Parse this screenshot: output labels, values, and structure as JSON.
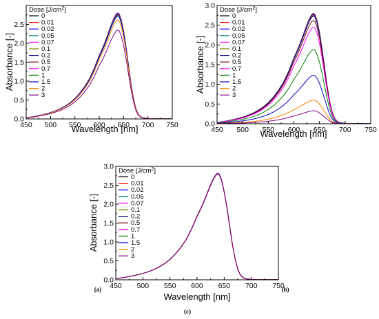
{
  "chart_data": [
    {
      "type": "line",
      "panel": "(a)",
      "xlabel": "Wavelength [nm]",
      "ylabel": "Absorbance [-]",
      "xlim": [
        450,
        750
      ],
      "ylim": [
        0,
        3.0
      ],
      "x_ticks": [
        "450",
        "500",
        "550",
        "600",
        "650",
        "700",
        "750"
      ],
      "y_ticks": [
        "0.0",
        "0.5",
        "1.0",
        "1.5",
        "2.0",
        "2.5"
      ],
      "grid": false,
      "legend_position": "top-left",
      "legend_title": "Dose [J/cm",
      "legend_title_sup": "2",
      "legend_title_end": "]",
      "peak_wavelength": 638,
      "series": [
        {
          "name": "0",
          "color": "#000000",
          "peak": 2.8
        },
        {
          "name": "0.01",
          "color": "#ff0000",
          "peak": 2.8
        },
        {
          "name": "0.02",
          "color": "#0000ff",
          "peak": 2.8
        },
        {
          "name": "0.05",
          "color": "#008080",
          "peak": 2.79
        },
        {
          "name": "0.07",
          "color": "#ff00ff",
          "peak": 2.79
        },
        {
          "name": "0.1",
          "color": "#808000",
          "peak": 2.78
        },
        {
          "name": "0.2",
          "color": "#000080",
          "peak": 2.78
        },
        {
          "name": "0.5",
          "color": "#800000",
          "peak": 2.77
        },
        {
          "name": "0.7",
          "color": "#ff00ff",
          "peak": 2.76
        },
        {
          "name": "1",
          "color": "#008000",
          "peak": 2.75
        },
        {
          "name": "1.5",
          "color": "#0000c0",
          "peak": 2.72
        },
        {
          "name": "2",
          "color": "#ff8000",
          "peak": 2.62
        },
        {
          "name": "3",
          "color": "#800080",
          "peak": 2.35
        }
      ]
    },
    {
      "type": "line",
      "panel": "(b)",
      "xlabel": "Wavelength [nm]",
      "ylabel": "Absorbance [-]",
      "xlim": [
        450,
        750
      ],
      "ylim": [
        0,
        3.0
      ],
      "x_ticks": [
        "450",
        "500",
        "550",
        "600",
        "650",
        "700",
        "750"
      ],
      "y_ticks": [
        "0.0",
        "0.5",
        "1.0",
        "1.5",
        "2.0",
        "2.5",
        "3.0"
      ],
      "grid": false,
      "legend_position": "top-left",
      "legend_title": "Dose [J/cm",
      "legend_title_sup": "2",
      "legend_title_end": "]",
      "peak_wavelength": 638,
      "series": [
        {
          "name": "0",
          "color": "#000000",
          "peak": 2.8
        },
        {
          "name": "0.01",
          "color": "#ff0000",
          "peak": 2.78
        },
        {
          "name": "0.02",
          "color": "#0000ff",
          "peak": 2.77
        },
        {
          "name": "0.05",
          "color": "#008080",
          "peak": 2.76
        },
        {
          "name": "0.07",
          "color": "#ff00ff",
          "peak": 2.75
        },
        {
          "name": "0.1",
          "color": "#808000",
          "peak": 2.74
        },
        {
          "name": "0.2",
          "color": "#000080",
          "peak": 2.73
        },
        {
          "name": "0.5",
          "color": "#800000",
          "peak": 2.62
        },
        {
          "name": "0.7",
          "color": "#ff00ff",
          "peak": 2.45
        },
        {
          "name": "1",
          "color": "#008000",
          "peak": 1.88
        },
        {
          "name": "1.5",
          "color": "#0000c0",
          "peak": 1.23
        },
        {
          "name": "2",
          "color": "#ff8000",
          "peak": 0.6
        },
        {
          "name": "3",
          "color": "#800080",
          "peak": 0.33
        }
      ]
    },
    {
      "type": "line",
      "panel": "(c)",
      "xlabel": "Wavelength [nm]",
      "ylabel": "Absorbance [-]",
      "xlim": [
        450,
        750
      ],
      "ylim": [
        0,
        3.0
      ],
      "x_ticks": [
        "450",
        "500",
        "550",
        "600",
        "650",
        "700",
        "750"
      ],
      "y_ticks": [
        "0.0",
        "0.5",
        "1.0",
        "1.5",
        "2.0",
        "2.5",
        "3.0"
      ],
      "grid": false,
      "legend_position": "top-left",
      "legend_title": "Dose [J/cm",
      "legend_title_sup": "2",
      "legend_title_end": "]",
      "peak_wavelength": 638,
      "series": [
        {
          "name": "0",
          "color": "#000000",
          "peak": 2.82
        },
        {
          "name": "0.01",
          "color": "#ff0000",
          "peak": 2.82
        },
        {
          "name": "0.02",
          "color": "#0000ff",
          "peak": 2.82
        },
        {
          "name": "0.05",
          "color": "#008080",
          "peak": 2.82
        },
        {
          "name": "0.07",
          "color": "#ff00ff",
          "peak": 2.81
        },
        {
          "name": "0.1",
          "color": "#808000",
          "peak": 2.81
        },
        {
          "name": "0.2",
          "color": "#000080",
          "peak": 2.81
        },
        {
          "name": "0.5",
          "color": "#800000",
          "peak": 2.81
        },
        {
          "name": "0.7",
          "color": "#ff00ff",
          "peak": 2.81
        },
        {
          "name": "1",
          "color": "#008000",
          "peak": 2.8
        },
        {
          "name": "1.5",
          "color": "#0000c0",
          "peak": 2.8
        },
        {
          "name": "2",
          "color": "#ff8000",
          "peak": 2.8
        },
        {
          "name": "3",
          "color": "#800080",
          "peak": 2.8
        }
      ]
    }
  ]
}
